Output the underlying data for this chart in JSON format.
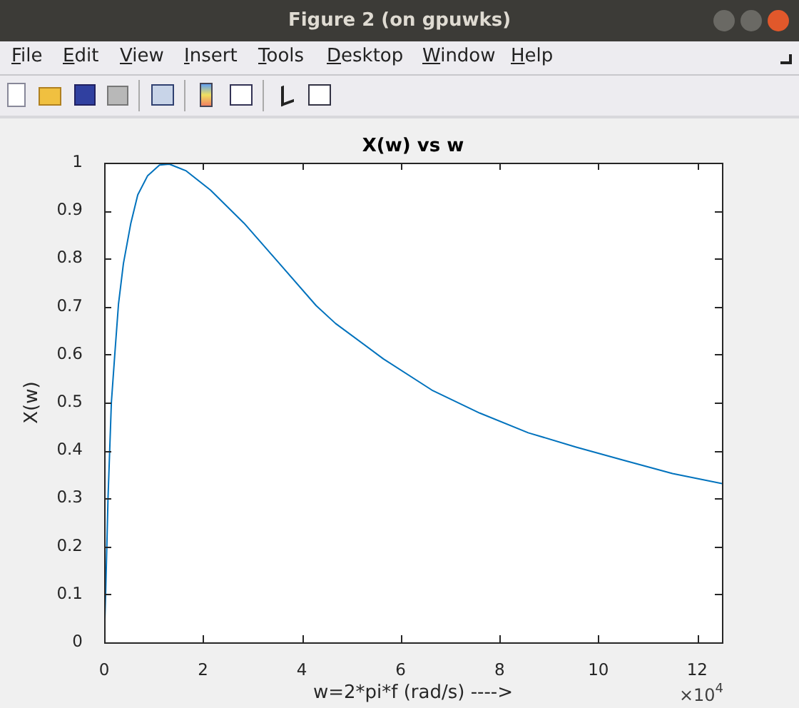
{
  "chart_data": {
    "type": "line",
    "title": "X(w) vs w",
    "xlabel": "w=2*pi*f (rad/s) ---->",
    "ylabel": "X(w)",
    "x": [
      0,
      0.03,
      0.078,
      0.146,
      0.215,
      0.29,
      0.39,
      0.54,
      0.68,
      0.88,
      1.12,
      1.32,
      1.66,
      2.15,
      2.83,
      3.51,
      4.29,
      4.68,
      5.65,
      6.63,
      7.6,
      8.58,
      9.55,
      10.53,
      11.5,
      12.5
    ],
    "series": [
      {
        "color": "#0072bd",
        "values": [
          0,
          0.1,
          0.3,
          0.5,
          0.6,
          0.705,
          0.79,
          0.874,
          0.933,
          0.973,
          0.995,
          0.997,
          0.983,
          0.943,
          0.874,
          0.794,
          0.702,
          0.665,
          0.591,
          0.526,
          0.478,
          0.437,
          0.407,
          0.379,
          0.352,
          0.331
        ]
      }
    ],
    "xlim": [
      0,
      12.5
    ],
    "xticks": [
      0,
      2,
      4,
      6,
      8,
      10,
      12
    ],
    "ylim": [
      0,
      1
    ],
    "yticks": [
      0,
      0.1,
      0.2,
      0.3,
      0.4,
      0.5,
      0.6,
      0.7,
      0.8,
      0.9,
      1
    ],
    "grid": false,
    "legend": false,
    "annotations": [
      "Figure 2 (on gpuwks)",
      "File",
      "Edit",
      "View",
      "Insert",
      "Tools",
      "Desktop",
      "Window",
      "Help",
      "×10$^{4}$"
    ]
  }
}
